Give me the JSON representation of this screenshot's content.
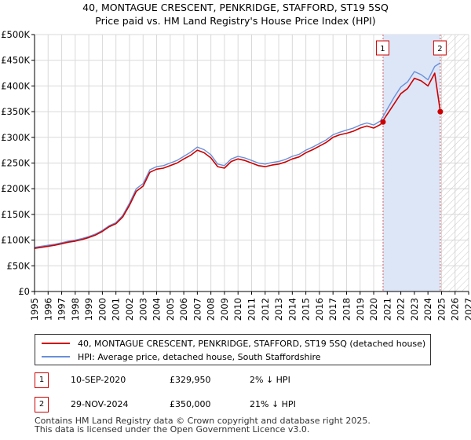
{
  "chart_data": {
    "type": "line",
    "title": "40, MONTAGUE CRESCENT, PENKRIDGE, STAFFORD, ST19 5SQ",
    "subtitle": "Price paid vs. HM Land Registry's House Price Index (HPI)",
    "xlabel": "",
    "ylabel": "",
    "xlim": [
      1995,
      2027
    ],
    "ylim": [
      0,
      500000
    ],
    "x_ticks": [
      "1995",
      "1996",
      "1997",
      "1998",
      "1999",
      "2000",
      "2001",
      "2002",
      "2003",
      "2004",
      "2005",
      "2006",
      "2007",
      "2008",
      "2009",
      "2010",
      "2011",
      "2012",
      "2013",
      "2014",
      "2015",
      "2016",
      "2017",
      "2018",
      "2019",
      "2020",
      "2021",
      "2022",
      "2023",
      "2024",
      "2025",
      "2026",
      "2027"
    ],
    "y_ticks": [
      {
        "value": 0,
        "label": "£0"
      },
      {
        "value": 50000,
        "label": "£50K"
      },
      {
        "value": 100000,
        "label": "£100K"
      },
      {
        "value": 150000,
        "label": "£150K"
      },
      {
        "value": 200000,
        "label": "£200K"
      },
      {
        "value": 250000,
        "label": "£250K"
      },
      {
        "value": 300000,
        "label": "£300K"
      },
      {
        "value": 350000,
        "label": "£350K"
      },
      {
        "value": 400000,
        "label": "£400K"
      },
      {
        "value": 450000,
        "label": "£450K"
      },
      {
        "value": 500000,
        "label": "£500K"
      }
    ],
    "grid": true,
    "x": [
      1995,
      1995.5,
      1996,
      1996.5,
      1997,
      1997.5,
      1998,
      1998.5,
      1999,
      1999.5,
      2000,
      2000.5,
      2001,
      2001.5,
      2002,
      2002.5,
      2003,
      2003.5,
      2004,
      2004.5,
      2005,
      2005.5,
      2006,
      2006.5,
      2007,
      2007.5,
      2008,
      2008.5,
      2009,
      2009.5,
      2010,
      2010.5,
      2011,
      2011.5,
      2012,
      2012.5,
      2013,
      2013.5,
      2014,
      2014.5,
      2015,
      2015.5,
      2016,
      2016.5,
      2017,
      2017.5,
      2018,
      2018.5,
      2019,
      2019.5,
      2020,
      2020.5,
      2021,
      2021.5,
      2022,
      2022.5,
      2023,
      2023.5,
      2024,
      2024.5,
      2024.91
    ],
    "series": [
      {
        "name": "40, MONTAGUE CRESCENT, PENKRIDGE, STAFFORD, ST19 5SQ (detached house)",
        "color": "#cc0000",
        "values": [
          84000,
          86000,
          88000,
          90000,
          93000,
          96000,
          98000,
          101000,
          105000,
          110000,
          117000,
          126000,
          132000,
          145000,
          168000,
          195000,
          205000,
          232000,
          238000,
          240000,
          245000,
          250000,
          258000,
          265000,
          275000,
          270000,
          260000,
          243000,
          240000,
          253000,
          258000,
          255000,
          250000,
          245000,
          243000,
          246000,
          248000,
          252000,
          258000,
          262000,
          270000,
          276000,
          283000,
          290000,
          300000,
          305000,
          308000,
          312000,
          318000,
          322000,
          318000,
          325000,
          345000,
          365000,
          385000,
          395000,
          415000,
          410000,
          400000,
          425000,
          350000
        ]
      },
      {
        "name": "HPI: Average price, detached house, South Staffordshire",
        "color": "#6a8fd8",
        "values": [
          86000,
          88000,
          90000,
          92000,
          95000,
          98000,
          100000,
          103000,
          107000,
          112000,
          119000,
          128000,
          134000,
          148000,
          172000,
          200000,
          210000,
          237000,
          243000,
          245000,
          250000,
          255000,
          263000,
          271000,
          281000,
          276000,
          266000,
          248000,
          245000,
          258000,
          263000,
          260000,
          255000,
          250000,
          248000,
          251000,
          253000,
          257000,
          263000,
          267000,
          275000,
          281000,
          288000,
          295000,
          305000,
          310000,
          314000,
          318000,
          324000,
          328000,
          324000,
          332000,
          355000,
          378000,
          398000,
          408000,
          428000,
          422000,
          412000,
          438000,
          445000
        ]
      }
    ],
    "sales": [
      {
        "id": "1",
        "x": 2020.69,
        "price": 329950
      },
      {
        "id": "2",
        "x": 2024.91,
        "price": 350000
      }
    ],
    "shaded_region": [
      2020.69,
      2024.91
    ],
    "hatched_from": 2024.91,
    "legend_position": "bottom"
  },
  "annotations": [
    {
      "id": "1",
      "date": "10-SEP-2020",
      "price": "£329,950",
      "hpi": "2% ↓ HPI"
    },
    {
      "id": "2",
      "date": "29-NOV-2024",
      "price": "£350,000",
      "hpi": "21% ↓ HPI"
    }
  ],
  "footer": {
    "line1": "Contains HM Land Registry data © Crown copyright and database right 2025.",
    "line2": "This data is licensed under the Open Government Licence v3.0."
  },
  "colors": {
    "price": "#cc0000",
    "hpi": "#6a8fd8",
    "shade": "#dde6f7",
    "grid": "#d9d9d9"
  }
}
